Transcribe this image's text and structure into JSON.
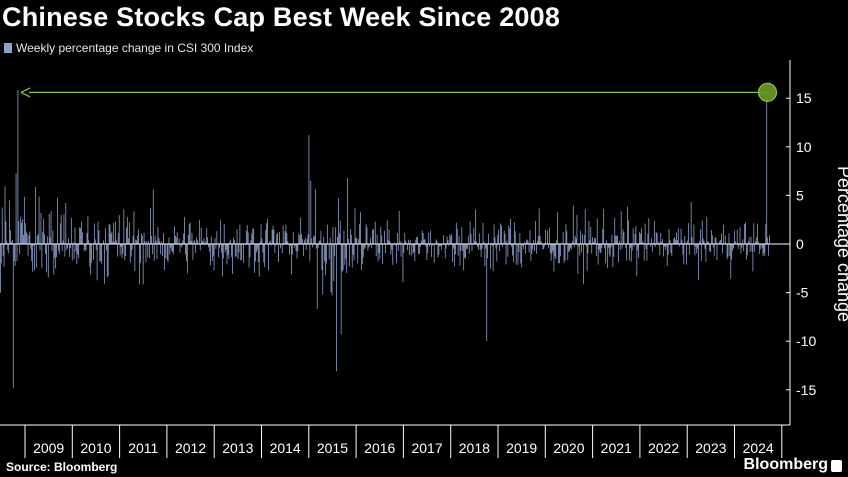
{
  "header": {
    "title": "Chinese Stocks Cap Best Week Since 2008",
    "legend_label": "Weekly percentage change in CSI 300 Index"
  },
  "footer": {
    "source": "Source: Bloomberg",
    "brand": "Bloomberg"
  },
  "colors": {
    "background": "#000000",
    "bar": "#8d9fc9",
    "annotation": "#8ac43f",
    "zero_line": "#ffffff"
  },
  "chart_data": {
    "type": "bar",
    "title": "Chinese Stocks Cap Best Week Since 2008",
    "ylabel": "Percentage change",
    "xlabel": "",
    "ylim": [
      -18,
      18
    ],
    "yticks": [
      15,
      10,
      5,
      0,
      -5,
      -10,
      -15
    ],
    "x_categories": [
      "2009",
      "2010",
      "2011",
      "2012",
      "2013",
      "2014",
      "2015",
      "2016",
      "2017",
      "2018",
      "2019",
      "2020",
      "2021",
      "2022",
      "2023",
      "2024"
    ],
    "series": [
      {
        "name": "Weekly percentage change in CSI 300 Index",
        "highlights": [
          {
            "date": "2008-11",
            "value": 15.8
          },
          {
            "date": "2008-10",
            "value": -14.8
          },
          {
            "date": "2015-01",
            "value": 11.2
          },
          {
            "date": "2015-08",
            "value": -13.1
          },
          {
            "date": "2015-09",
            "value": -9.3
          },
          {
            "date": "2018-10",
            "value": -10.0
          },
          {
            "date": "2024-09",
            "value": 15.7
          }
        ]
      }
    ],
    "annotation": {
      "type": "arrow",
      "from_date": "2024-09",
      "to_date": "2008-11",
      "value": 15.7
    },
    "legend_position": "top-left",
    "grid": false
  }
}
